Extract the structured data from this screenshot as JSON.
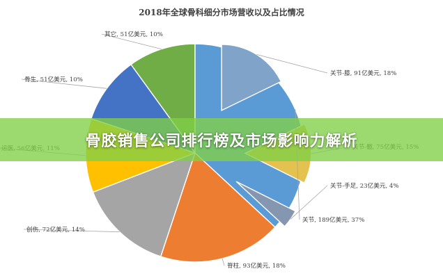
{
  "banner": {
    "text": "骨胶销售公司排行榜及市场影响力解析"
  },
  "chart_data": {
    "type": "pie",
    "title": "2018年全球骨科细分市场营收以及占比情况",
    "unit": "亿美元",
    "exploded": [
      "关节-膝",
      "关节-髋",
      "关节-手足"
    ],
    "slices": [
      {
        "name": "关节",
        "value": 189,
        "percent": 37,
        "label": "关节, 189亿美元, 37%",
        "color": "#5b9bd5"
      },
      {
        "name": "脊柱",
        "value": 93,
        "percent": 18,
        "label": "脊柱, 93亿美元, 18%",
        "color": "#ed7d31"
      },
      {
        "name": "创伤",
        "value": 72,
        "percent": 14,
        "label": "创伤, 72亿美元, 14%",
        "color": "#a5a5a5"
      },
      {
        "name": "运医",
        "value": 56,
        "percent": 11,
        "label": "运医, 56亿美元, 11%",
        "color": "#ffc000"
      },
      {
        "name": "骨生",
        "value": 51,
        "percent": 10,
        "label": "骨生, 51亿美元, 10%",
        "color": "#4472c4"
      },
      {
        "name": "其它",
        "value": 51,
        "percent": 10,
        "label": "其它, 51亿美元, 10%",
        "color": "#70ad47"
      },
      {
        "name": "关节-膝",
        "value": 91,
        "percent": 18,
        "label": "关节-膝, 91亿美元, 18%",
        "color": "#7fa3c9"
      },
      {
        "name": "关节-髋",
        "value": 75,
        "percent": 15,
        "label": "关节-髋, 75亿美元, 15%",
        "color": "#e4c250"
      },
      {
        "name": "关节-手足",
        "value": 23,
        "percent": 4,
        "label": "关节-手足, 23亿美元, 4%",
        "color": "#8496b0"
      }
    ]
  }
}
